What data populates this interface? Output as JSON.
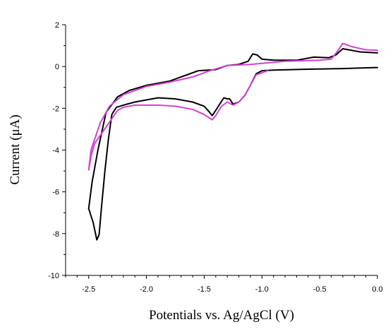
{
  "chart_data": {
    "type": "line",
    "title": "",
    "xlabel": "Potentials vs. Ag/AgCl (V)",
    "ylabel": "Current (μA)",
    "xlim": [
      -2.7,
      0.0
    ],
    "ylim": [
      -10,
      2
    ],
    "xticks": [
      -2.5,
      -2.0,
      -1.5,
      -1.0,
      -0.5,
      0.0
    ],
    "xtick_labels": [
      "-2.5",
      "-2.0",
      "-1.5",
      "-1.0",
      "-0.5",
      "0.0"
    ],
    "yticks": [
      -10,
      -8,
      -6,
      -4,
      -2,
      0,
      2
    ],
    "ytick_labels": [
      "-10",
      "-8",
      "-6",
      "-4",
      "-2",
      "0",
      "2"
    ],
    "grid": false,
    "legend": "none",
    "series": [
      {
        "color": "#000000",
        "points": [
          [
            0.0,
            -0.05
          ],
          [
            -0.3,
            -0.1
          ],
          [
            -0.6,
            -0.13
          ],
          [
            -0.9,
            -0.17
          ],
          [
            -1.0,
            -0.2
          ],
          [
            -1.05,
            -0.35
          ],
          [
            -1.1,
            -0.9
          ],
          [
            -1.15,
            -1.4
          ],
          [
            -1.2,
            -1.7
          ],
          [
            -1.25,
            -1.8
          ],
          [
            -1.28,
            -1.55
          ],
          [
            -1.3,
            -1.55
          ],
          [
            -1.33,
            -1.5
          ],
          [
            -1.36,
            -1.75
          ],
          [
            -1.4,
            -2.1
          ],
          [
            -1.43,
            -2.35
          ],
          [
            -1.46,
            -2.15
          ],
          [
            -1.5,
            -1.9
          ],
          [
            -1.6,
            -1.7
          ],
          [
            -1.75,
            -1.55
          ],
          [
            -1.9,
            -1.5
          ],
          [
            -2.1,
            -1.7
          ],
          [
            -2.2,
            -1.85
          ],
          [
            -2.26,
            -1.95
          ],
          [
            -2.3,
            -2.3
          ],
          [
            -2.33,
            -3.5
          ],
          [
            -2.36,
            -5.0
          ],
          [
            -2.39,
            -6.8
          ],
          [
            -2.41,
            -8.05
          ],
          [
            -2.43,
            -8.3
          ],
          [
            -2.46,
            -7.5
          ],
          [
            -2.5,
            -6.8
          ],
          [
            -2.47,
            -5.5
          ],
          [
            -2.42,
            -4.0
          ],
          [
            -2.35,
            -2.2
          ],
          [
            -2.25,
            -1.45
          ],
          [
            -2.15,
            -1.15
          ],
          [
            -2.0,
            -0.9
          ],
          [
            -1.8,
            -0.7
          ],
          [
            -1.65,
            -0.4
          ],
          [
            -1.55,
            -0.2
          ],
          [
            -1.4,
            -0.15
          ],
          [
            -1.3,
            0.05
          ],
          [
            -1.2,
            0.1
          ],
          [
            -1.12,
            0.25
          ],
          [
            -1.08,
            0.6
          ],
          [
            -1.04,
            0.55
          ],
          [
            -1.0,
            0.35
          ],
          [
            -0.9,
            0.3
          ],
          [
            -0.7,
            0.3
          ],
          [
            -0.55,
            0.45
          ],
          [
            -0.42,
            0.42
          ],
          [
            -0.36,
            0.55
          ],
          [
            -0.3,
            0.85
          ],
          [
            -0.25,
            0.8
          ],
          [
            -0.15,
            0.7
          ],
          [
            0.0,
            0.65
          ]
        ]
      },
      {
        "color": "#d63fd6",
        "points": [
          [
            -0.95,
            -0.2
          ],
          [
            -1.05,
            -0.4
          ],
          [
            -1.1,
            -0.9
          ],
          [
            -1.15,
            -1.4
          ],
          [
            -1.2,
            -1.7
          ],
          [
            -1.25,
            -1.85
          ],
          [
            -1.3,
            -1.7
          ],
          [
            -1.35,
            -1.9
          ],
          [
            -1.4,
            -2.35
          ],
          [
            -1.43,
            -2.55
          ],
          [
            -1.5,
            -2.3
          ],
          [
            -1.6,
            -2.05
          ],
          [
            -1.75,
            -1.9
          ],
          [
            -1.9,
            -1.85
          ],
          [
            -2.1,
            -1.85
          ],
          [
            -2.2,
            -1.95
          ],
          [
            -2.25,
            -2.1
          ],
          [
            -2.3,
            -2.5
          ],
          [
            -2.35,
            -2.9
          ],
          [
            -2.4,
            -3.3
          ],
          [
            -2.45,
            -3.7
          ],
          [
            -2.48,
            -4.3
          ],
          [
            -2.5,
            -4.95
          ],
          [
            -2.48,
            -4.0
          ],
          [
            -2.4,
            -2.7
          ],
          [
            -2.32,
            -1.9
          ],
          [
            -2.2,
            -1.35
          ],
          [
            -2.0,
            -0.95
          ],
          [
            -1.8,
            -0.75
          ],
          [
            -1.6,
            -0.5
          ],
          [
            -1.45,
            -0.2
          ],
          [
            -1.3,
            0.05
          ],
          [
            -1.1,
            0.1
          ],
          [
            -0.8,
            0.25
          ],
          [
            -0.5,
            0.3
          ],
          [
            -0.4,
            0.35
          ],
          [
            -0.35,
            0.7
          ],
          [
            -0.3,
            1.1
          ],
          [
            -0.22,
            0.95
          ],
          [
            -0.1,
            0.8
          ],
          [
            0.0,
            0.78
          ]
        ]
      }
    ]
  }
}
